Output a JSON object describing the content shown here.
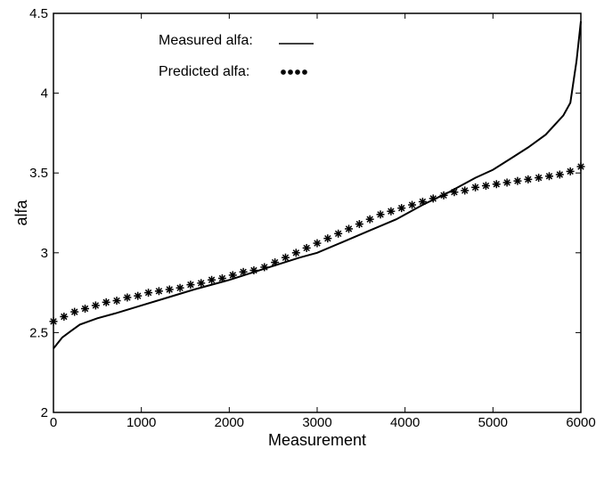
{
  "chart_data": {
    "type": "line",
    "xlabel": "Measurement",
    "ylabel": "alfa",
    "xlim": [
      0,
      6000
    ],
    "ylim": [
      2,
      4.5
    ],
    "xticks": [
      0,
      1000,
      2000,
      3000,
      4000,
      5000,
      6000
    ],
    "yticks": [
      2,
      2.5,
      3,
      3.5,
      4,
      4.5
    ],
    "xtick_labels": [
      "0",
      "1000",
      "2000",
      "3000",
      "4000",
      "5000",
      "6000"
    ],
    "ytick_labels": [
      "2",
      "2.5",
      "3",
      "3.5",
      "4",
      "4.5"
    ],
    "grid": false,
    "legend": {
      "placement": "top-left",
      "items": [
        "Measured alfa:",
        "Predicted alfa:"
      ]
    },
    "series": [
      {
        "name": "Measured alfa:",
        "style": "solid line",
        "x": [
          0,
          100,
          200,
          300,
          500,
          700,
          1000,
          1300,
          1600,
          2000,
          2400,
          2800,
          3000,
          3300,
          3600,
          3900,
          4200,
          4500,
          4800,
          5000,
          5200,
          5400,
          5600,
          5800,
          5880,
          5950,
          6000
        ],
        "y": [
          2.4,
          2.47,
          2.51,
          2.55,
          2.59,
          2.62,
          2.67,
          2.72,
          2.77,
          2.83,
          2.9,
          2.97,
          3.0,
          3.07,
          3.14,
          3.21,
          3.3,
          3.38,
          3.47,
          3.52,
          3.59,
          3.66,
          3.74,
          3.86,
          3.94,
          4.2,
          4.45
        ]
      },
      {
        "name": "Predicted alfa:",
        "style": "asterisk markers",
        "x": [
          0,
          120,
          240,
          360,
          480,
          600,
          720,
          840,
          960,
          1080,
          1200,
          1320,
          1440,
          1560,
          1680,
          1800,
          1920,
          2040,
          2160,
          2280,
          2400,
          2520,
          2640,
          2760,
          2880,
          3000,
          3120,
          3240,
          3360,
          3480,
          3600,
          3720,
          3840,
          3960,
          4080,
          4200,
          4320,
          4440,
          4560,
          4680,
          4800,
          4920,
          5040,
          5160,
          5280,
          5400,
          5520,
          5640,
          5760,
          5880,
          6000
        ],
        "y": [
          2.57,
          2.6,
          2.63,
          2.65,
          2.67,
          2.69,
          2.7,
          2.72,
          2.73,
          2.75,
          2.76,
          2.77,
          2.78,
          2.8,
          2.81,
          2.83,
          2.84,
          2.86,
          2.88,
          2.89,
          2.91,
          2.94,
          2.97,
          3.0,
          3.03,
          3.06,
          3.09,
          3.12,
          3.15,
          3.18,
          3.21,
          3.24,
          3.26,
          3.28,
          3.3,
          3.32,
          3.34,
          3.36,
          3.38,
          3.39,
          3.41,
          3.42,
          3.43,
          3.44,
          3.45,
          3.46,
          3.47,
          3.48,
          3.49,
          3.51,
          3.54
        ]
      }
    ]
  }
}
